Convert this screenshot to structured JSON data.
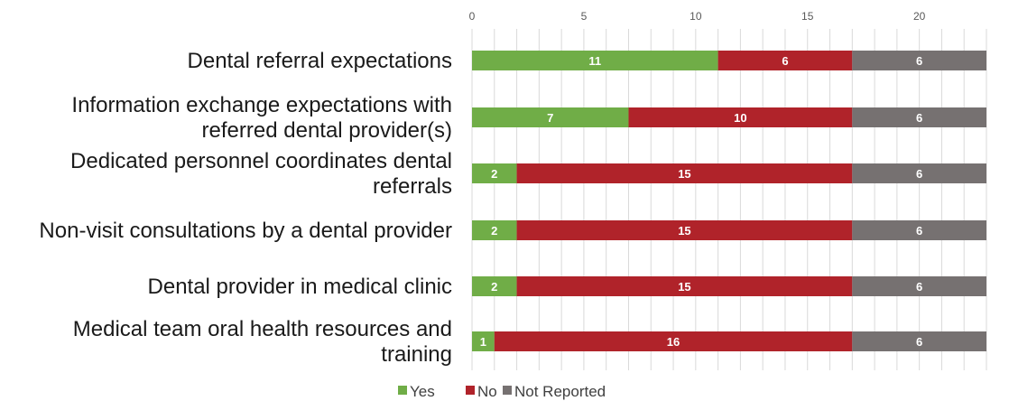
{
  "chart_data": {
    "type": "bar",
    "orientation": "horizontal",
    "stacked": true,
    "title": "",
    "xlabel": "",
    "ylabel": "",
    "xlim": [
      0,
      23
    ],
    "x_ticks": [
      0,
      5,
      10,
      15,
      20
    ],
    "x_tick_labels": [
      "0",
      "5",
      "10",
      "15",
      "20"
    ],
    "grid": true,
    "legend_position": "bottom",
    "categories": [
      [
        "Dental referral expectations"
      ],
      [
        "Information exchange expectations with",
        "referred dental provider(s)"
      ],
      [
        "Dedicated personnel coordinates dental",
        "referrals"
      ],
      [
        "Non-visit consultations by a dental provider"
      ],
      [
        "Dental provider in medical clinic"
      ],
      [
        "Medical team oral health resources and",
        "training"
      ]
    ],
    "series": [
      {
        "name": "Yes",
        "color": "#70ad47",
        "values": [
          11,
          7,
          2,
          2,
          2,
          1
        ]
      },
      {
        "name": "No",
        "color": "#b0232a",
        "values": [
          6,
          10,
          15,
          15,
          15,
          16
        ]
      },
      {
        "name": "Not Reported",
        "color": "#767171",
        "values": [
          6,
          6,
          6,
          6,
          6,
          6
        ]
      }
    ]
  }
}
